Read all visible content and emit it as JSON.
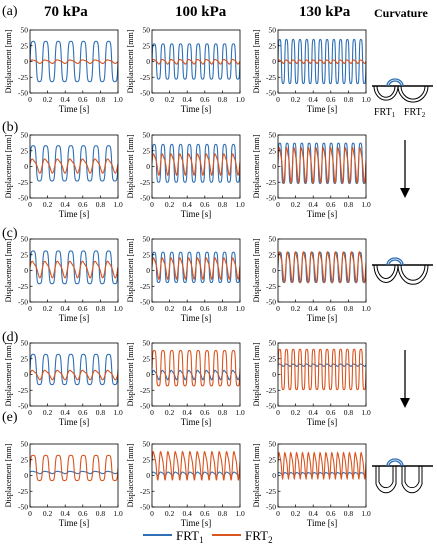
{
  "figure": {
    "column_headers": [
      "70 kPa",
      "100 kPa",
      "130 kPa"
    ],
    "curvature_header": "Curvature",
    "row_labels": [
      "(a)",
      "(b)",
      "(c)",
      "(d)",
      "(e)"
    ],
    "frt_labels": [
      "FRT",
      "FRT"
    ],
    "frt_subscripts": [
      "1",
      "2"
    ],
    "legend": [
      {
        "label": "FRT",
        "sub": "1",
        "color": "#2e6fb5"
      },
      {
        "label": "FRT",
        "sub": "2",
        "color": "#d9541e"
      }
    ]
  },
  "chart_data": [
    {
      "type": "line",
      "row": "(a)",
      "title": "70 kPa",
      "xlabel": "Time [s]",
      "ylabel": "Displacement [mm]",
      "xlim": [
        0,
        1
      ],
      "ylim": [
        -50,
        50
      ],
      "xticks": [
        "0",
        "0.2",
        "0.4",
        "0.6",
        "0.8",
        "1.0"
      ],
      "yticks": [
        "-50",
        "-25",
        "0",
        "25",
        "50"
      ],
      "series": [
        {
          "name": "FRT1",
          "freq": 7,
          "amp": 32,
          "offset": 0,
          "shape": "plateau"
        },
        {
          "name": "FRT2",
          "freq": 7,
          "amp": 3,
          "offset": 0,
          "shape": "sine"
        }
      ]
    },
    {
      "type": "line",
      "row": "(a)",
      "title": "100 kPa",
      "xlabel": "Time [s]",
      "ylabel": "Displacement [mm]",
      "xlim": [
        0,
        1
      ],
      "ylim": [
        -50,
        50
      ],
      "xticks": [
        "0",
        "0.2",
        "0.4",
        "0.6",
        "0.8",
        "1.0"
      ],
      "yticks": [
        "-50",
        "-25",
        "0",
        "25",
        "50"
      ],
      "series": [
        {
          "name": "FRT1",
          "freq": 10,
          "amp": 28,
          "offset": 0,
          "shape": "plateau"
        },
        {
          "name": "FRT2",
          "freq": 10,
          "amp": 4,
          "offset": 0,
          "shape": "sine"
        }
      ]
    },
    {
      "type": "line",
      "row": "(a)",
      "title": "130 kPa",
      "xlabel": "Time [s]",
      "ylabel": "Displacement [mm]",
      "xlim": [
        0,
        1
      ],
      "ylim": [
        -50,
        50
      ],
      "xticks": [
        "0",
        "0.2",
        "0.4",
        "0.6",
        "0.8",
        "1.0"
      ],
      "yticks": [
        "-50",
        "-25",
        "0",
        "25",
        "50"
      ],
      "series": [
        {
          "name": "FRT1",
          "freq": 13,
          "amp": 35,
          "offset": 0,
          "shape": "plateau"
        },
        {
          "name": "FRT2",
          "freq": 13,
          "amp": 3,
          "offset": 0,
          "shape": "sine"
        }
      ]
    },
    {
      "type": "line",
      "row": "(b)",
      "title": "70 kPa",
      "xlabel": "Time [s]",
      "ylabel": "Displacement [mm]",
      "xlim": [
        0,
        1
      ],
      "ylim": [
        -50,
        50
      ],
      "xticks": [
        "0",
        "0.2",
        "0.4",
        "0.6",
        "0.8",
        "1.0"
      ],
      "yticks": [
        "-50",
        "-25",
        "0",
        "25",
        "50"
      ],
      "series": [
        {
          "name": "FRT1",
          "freq": 7,
          "amp": 28,
          "offset": 5,
          "shape": "plateau"
        },
        {
          "name": "FRT2",
          "freq": 7,
          "amp": 12,
          "offset": 2,
          "shape": "sine"
        }
      ]
    },
    {
      "type": "line",
      "row": "(b)",
      "title": "100 kPa",
      "xlabel": "Time [s]",
      "ylabel": "Displacement [mm]",
      "xlim": [
        0,
        1
      ],
      "ylim": [
        -50,
        50
      ],
      "xticks": [
        "0",
        "0.2",
        "0.4",
        "0.6",
        "0.8",
        "1.0"
      ],
      "yticks": [
        "-50",
        "-25",
        "0",
        "25",
        "50"
      ],
      "series": [
        {
          "name": "FRT1",
          "freq": 10,
          "amp": 30,
          "offset": 5,
          "shape": "plateau"
        },
        {
          "name": "FRT2",
          "freq": 10,
          "amp": 18,
          "offset": 5,
          "shape": "sine"
        }
      ]
    },
    {
      "type": "line",
      "row": "(b)",
      "title": "130 kPa",
      "xlabel": "Time [s]",
      "ylabel": "Displacement [mm]",
      "xlim": [
        0,
        1
      ],
      "ylim": [
        -50,
        50
      ],
      "xticks": [
        "0",
        "0.2",
        "0.4",
        "0.6",
        "0.8",
        "1.0"
      ],
      "yticks": [
        "-50",
        "-25",
        "0",
        "25",
        "50"
      ],
      "series": [
        {
          "name": "FRT1",
          "freq": 12,
          "amp": 32,
          "offset": 5,
          "shape": "plateau"
        },
        {
          "name": "FRT2",
          "freq": 12,
          "amp": 30,
          "offset": 5,
          "shape": "sine"
        }
      ]
    },
    {
      "type": "line",
      "row": "(c)",
      "title": "70 kPa",
      "xlabel": "Time [s]",
      "ylabel": "Displacement [mm]",
      "xlim": [
        0,
        1
      ],
      "ylim": [
        -50,
        50
      ],
      "xticks": [
        "0",
        "0.2",
        "0.4",
        "0.6",
        "0.8",
        "1.0"
      ],
      "yticks": [
        "-50",
        "-25",
        "0",
        "25",
        "50"
      ],
      "series": [
        {
          "name": "FRT1",
          "freq": 7,
          "amp": 26,
          "offset": 5,
          "shape": "plateau"
        },
        {
          "name": "FRT2",
          "freq": 7,
          "amp": 14,
          "offset": 3,
          "shape": "sine"
        }
      ]
    },
    {
      "type": "line",
      "row": "(c)",
      "title": "100 kPa",
      "xlabel": "Time [s]",
      "ylabel": "Displacement [mm]",
      "xlim": [
        0,
        1
      ],
      "ylim": [
        -50,
        50
      ],
      "xticks": [
        "0",
        "0.2",
        "0.4",
        "0.6",
        "0.8",
        "1.0"
      ],
      "yticks": [
        "-50",
        "-25",
        "0",
        "25",
        "50"
      ],
      "series": [
        {
          "name": "FRT1",
          "freq": 10,
          "amp": 24,
          "offset": 5,
          "shape": "plateau"
        },
        {
          "name": "FRT2",
          "freq": 10,
          "amp": 18,
          "offset": 5,
          "shape": "sine"
        }
      ]
    },
    {
      "type": "line",
      "row": "(c)",
      "title": "130 kPa",
      "xlabel": "Time [s]",
      "ylabel": "Displacement [mm]",
      "xlim": [
        0,
        1
      ],
      "ylim": [
        -50,
        50
      ],
      "xticks": [
        "0",
        "0.2",
        "0.4",
        "0.6",
        "0.8",
        "1.0"
      ],
      "yticks": [
        "-50",
        "-25",
        "0",
        "25",
        "50"
      ],
      "series": [
        {
          "name": "FRT1",
          "freq": 11,
          "amp": 24,
          "offset": 5,
          "shape": "plateau"
        },
        {
          "name": "FRT2",
          "freq": 11,
          "amp": 26,
          "offset": 8,
          "shape": "sine"
        }
      ]
    },
    {
      "type": "line",
      "row": "(d)",
      "title": "70 kPa",
      "xlabel": "Time [s]",
      "ylabel": "Displacement [mm]",
      "xlim": [
        0,
        1
      ],
      "ylim": [
        -50,
        50
      ],
      "xticks": [
        "0",
        "0.2",
        "0.4",
        "0.6",
        "0.8",
        "1.0"
      ],
      "yticks": [
        "-50",
        "-25",
        "0",
        "25",
        "50"
      ],
      "series": [
        {
          "name": "FRT1",
          "freq": 7,
          "amp": 24,
          "offset": 8,
          "shape": "plateau"
        },
        {
          "name": "FRT2",
          "freq": 7,
          "amp": 8,
          "offset": 0,
          "shape": "sine"
        }
      ]
    },
    {
      "type": "line",
      "row": "(d)",
      "title": "100 kPa",
      "xlabel": "Time [s]",
      "ylabel": "Displacement [mm]",
      "xlim": [
        0,
        1
      ],
      "ylim": [
        -50,
        50
      ],
      "xticks": [
        "0",
        "0.2",
        "0.4",
        "0.6",
        "0.8",
        "1.0"
      ],
      "yticks": [
        "-50",
        "-25",
        "0",
        "25",
        "50"
      ],
      "series": [
        {
          "name": "FRT1",
          "freq": 10,
          "amp": 8,
          "offset": 0,
          "shape": "sine"
        },
        {
          "name": "FRT2",
          "freq": 10,
          "amp": 28,
          "offset": 10,
          "shape": "plateau"
        }
      ]
    },
    {
      "type": "line",
      "row": "(d)",
      "title": "130 kPa",
      "xlabel": "Time [s]",
      "ylabel": "Displacement [mm]",
      "xlim": [
        0,
        1
      ],
      "ylim": [
        -50,
        50
      ],
      "xticks": [
        "0",
        "0.2",
        "0.4",
        "0.6",
        "0.8",
        "1.0"
      ],
      "yticks": [
        "-50",
        "-25",
        "0",
        "25",
        "50"
      ],
      "series": [
        {
          "name": "FRT1",
          "freq": 13,
          "amp": 2,
          "offset": 15,
          "shape": "sine"
        },
        {
          "name": "FRT2",
          "freq": 13,
          "amp": 32,
          "offset": 8,
          "shape": "plateau"
        }
      ]
    },
    {
      "type": "line",
      "row": "(e)",
      "title": "70 kPa",
      "xlabel": "Time [s]",
      "ylabel": "Displacement [mm]",
      "xlim": [
        0,
        1
      ],
      "ylim": [
        -50,
        50
      ],
      "xticks": [
        "0",
        "0.2",
        "0.4",
        "0.6",
        "0.8",
        "1.0"
      ],
      "yticks": [
        "-50",
        "-25",
        "0",
        "25",
        "50"
      ],
      "series": [
        {
          "name": "FRT1",
          "freq": 7,
          "amp": 2,
          "offset": 5,
          "shape": "sine"
        },
        {
          "name": "FRT2",
          "freq": 7,
          "amp": 20,
          "offset": 12,
          "shape": "plateau"
        }
      ]
    },
    {
      "type": "line",
      "row": "(e)",
      "title": "100 kPa",
      "xlabel": "Time [s]",
      "ylabel": "Displacement [mm]",
      "xlim": [
        0,
        1
      ],
      "ylim": [
        -50,
        50
      ],
      "xticks": [
        "0",
        "0.2",
        "0.4",
        "0.6",
        "0.8",
        "1.0"
      ],
      "yticks": [
        "-50",
        "-25",
        "0",
        "25",
        "50"
      ],
      "series": [
        {
          "name": "FRT1",
          "freq": 12,
          "amp": 3,
          "offset": 3,
          "shape": "sine"
        },
        {
          "name": "FRT2",
          "freq": 12,
          "amp": 24,
          "offset": 18,
          "shape": "sine"
        }
      ]
    },
    {
      "type": "line",
      "row": "(e)",
      "title": "130 kPa",
      "xlabel": "Time [s]",
      "ylabel": "Displacement [mm]",
      "xlim": [
        0,
        1
      ],
      "ylim": [
        -50,
        50
      ],
      "xticks": [
        "0",
        "0.2",
        "0.4",
        "0.6",
        "0.8",
        "1.0"
      ],
      "yticks": [
        "-50",
        "-25",
        "0",
        "25",
        "50"
      ],
      "series": [
        {
          "name": "FRT1",
          "freq": 15,
          "amp": 2,
          "offset": 3,
          "shape": "sine"
        },
        {
          "name": "FRT2",
          "freq": 15,
          "amp": 22,
          "offset": 18,
          "shape": "sine"
        }
      ]
    }
  ]
}
